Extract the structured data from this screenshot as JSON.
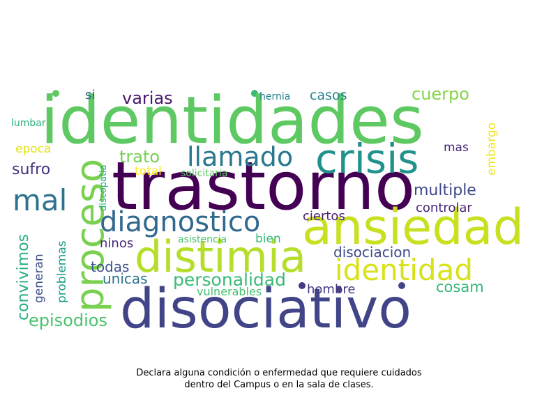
{
  "caption": {
    "line1": "Declara alguna condición o enfermedad que requiere cuidados",
    "line2": "dentro del Campus o en la sala de clases."
  },
  "words": [
    {
      "text": "identidades",
      "color": "#5ec962"
    },
    {
      "text": "trastorno",
      "color": "#440154"
    },
    {
      "text": "disociativo",
      "color": "#414487"
    },
    {
      "text": "crisis",
      "color": "#21918c"
    },
    {
      "text": "ansiedad",
      "color": "#c8e020"
    },
    {
      "text": "distimia",
      "color": "#b5de2b"
    },
    {
      "text": "proceso",
      "color": "#7ad151"
    },
    {
      "text": "diagnostico",
      "color": "#31688e"
    },
    {
      "text": "llamado",
      "color": "#2a788e"
    },
    {
      "text": "identidad",
      "color": "#d8e219"
    },
    {
      "text": "mal",
      "color": "#2c728e"
    },
    {
      "text": "personalidad",
      "color": "#3aba76"
    },
    {
      "text": "multiple",
      "color": "#3e4989"
    },
    {
      "text": "cuerpo",
      "color": "#86d549"
    },
    {
      "text": "trato",
      "color": "#75d054"
    },
    {
      "text": "varias",
      "color": "#48186a"
    },
    {
      "text": "episodios",
      "color": "#4ac16d"
    },
    {
      "text": "convivimos",
      "color": "#27ad81"
    },
    {
      "text": "sufro",
      "color": "#46327e"
    },
    {
      "text": "todas",
      "color": "#3b528b"
    },
    {
      "text": "unicas",
      "color": "#2c728e"
    },
    {
      "text": "cosam",
      "color": "#35b779"
    },
    {
      "text": "disociacion",
      "color": "#3e4a89"
    },
    {
      "text": "controlar",
      "color": "#482677"
    },
    {
      "text": "ciertos",
      "color": "#481f70"
    },
    {
      "text": "ninos",
      "color": "#472c7a"
    },
    {
      "text": "casos",
      "color": "#25848e"
    },
    {
      "text": "hombre",
      "color": "#453781"
    },
    {
      "text": "problemas",
      "color": "#1f9e89"
    },
    {
      "text": "generan",
      "color": "#3b528b"
    },
    {
      "text": "epoca",
      "color": "#e2e418"
    },
    {
      "text": "embargo",
      "color": "#f1e51d"
    },
    {
      "text": "mas",
      "color": "#482878"
    },
    {
      "text": "total",
      "color": "#fde725"
    },
    {
      "text": "bien",
      "color": "#38b977"
    },
    {
      "text": "si",
      "color": "#355f8d"
    },
    {
      "text": "vulnerables",
      "color": "#44bf70"
    },
    {
      "text": "solicitaria",
      "color": "#5ec962"
    },
    {
      "text": "discopatia",
      "color": "#22a884"
    },
    {
      "text": "hernia",
      "color": "#26828e"
    },
    {
      "text": "asistencia",
      "color": "#4ac16d"
    },
    {
      "text": "lumbar",
      "color": "#2db27d"
    }
  ]
}
